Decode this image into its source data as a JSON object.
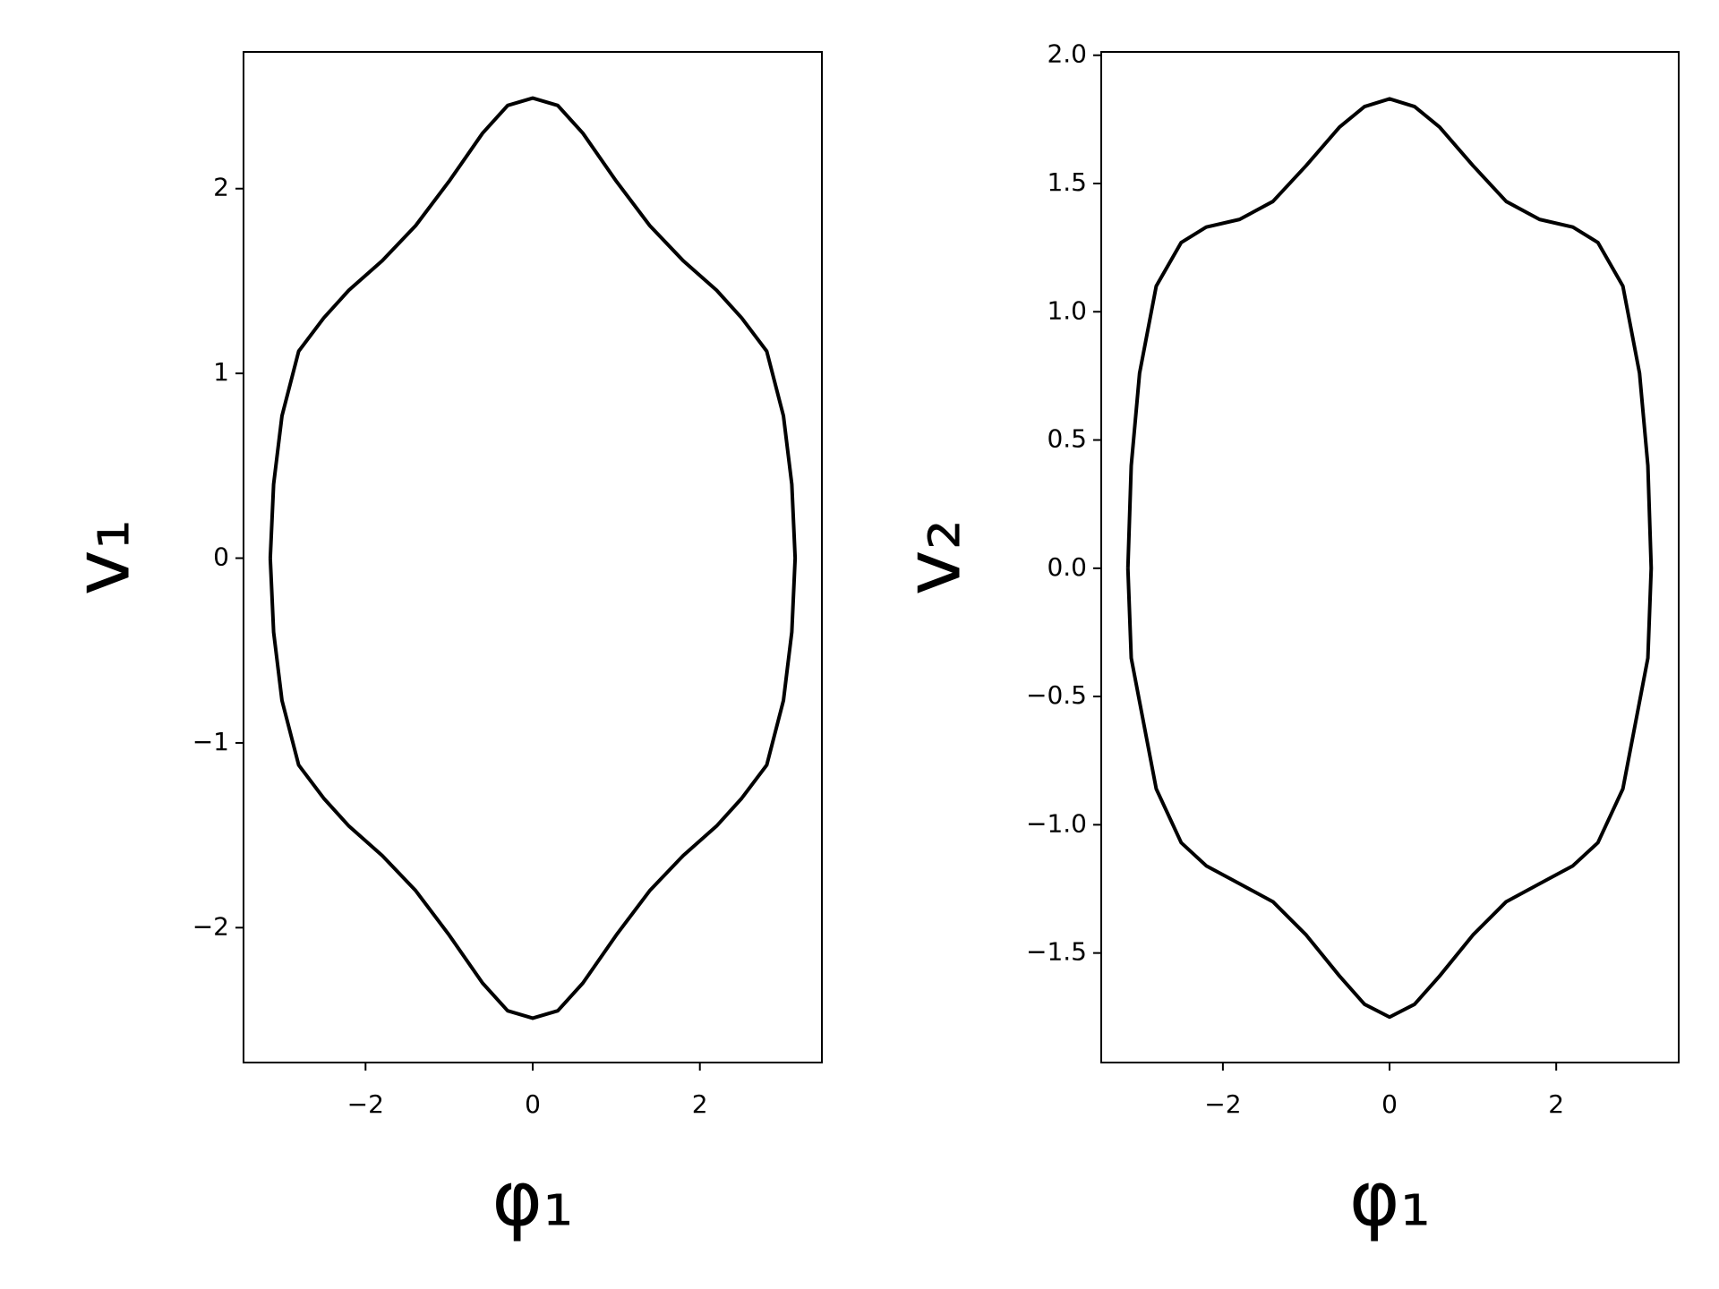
{
  "chart_data": [
    {
      "type": "line",
      "x_label": "φ₁",
      "y_label": "v₁",
      "x": [
        -3.14,
        -3.1,
        -3.0,
        -2.8,
        -2.5,
        -2.2,
        -1.8,
        -1.4,
        -1.0,
        -0.6,
        -0.3,
        0,
        0.3,
        0.6,
        1.0,
        1.4,
        1.8,
        2.2,
        2.5,
        2.8,
        3.0,
        3.1,
        3.14,
        3.1,
        3.0,
        2.8,
        2.5,
        2.2,
        1.8,
        1.4,
        1.0,
        0.6,
        0.3,
        0,
        -0.3,
        -0.6,
        -1.0,
        -1.4,
        -1.8,
        -2.2,
        -2.5,
        -2.8,
        -3.0,
        -3.1,
        -3.14
      ],
      "series": [
        {
          "color": "#000000",
          "values": [
            0,
            0.4,
            0.77,
            1.12,
            1.3,
            1.45,
            1.61,
            1.8,
            2.04,
            2.3,
            2.45,
            2.49,
            2.45,
            2.3,
            2.04,
            1.8,
            1.61,
            1.45,
            1.3,
            1.12,
            0.77,
            0.4,
            0,
            -0.4,
            -0.77,
            -1.12,
            -1.3,
            -1.45,
            -1.61,
            -1.8,
            -2.04,
            -2.3,
            -2.45,
            -2.49,
            -2.45,
            -2.3,
            -2.04,
            -1.8,
            -1.61,
            -1.45,
            -1.3,
            -1.12,
            -0.77,
            -0.4,
            0
          ]
        }
      ],
      "xlim": [
        -3.46,
        3.46
      ],
      "ylim": [
        -2.73,
        2.74
      ],
      "xticks": [
        {
          "value": -2,
          "label": "−2"
        },
        0,
        2
      ],
      "yticks": [
        {
          "value": -2,
          "label": "−2"
        },
        {
          "value": -1,
          "label": "−1"
        },
        0,
        1,
        2
      ]
    },
    {
      "type": "line",
      "x_label": "φ₁",
      "y_label": "v₂",
      "x": [
        -3.14,
        -3.1,
        -3.0,
        -2.8,
        -2.5,
        -2.2,
        -1.8,
        -1.4,
        -1.0,
        -0.6,
        -0.3,
        0,
        0.3,
        0.6,
        1.0,
        1.4,
        1.8,
        2.2,
        2.5,
        2.8,
        3.0,
        3.1,
        3.14,
        3.1,
        3.0,
        2.8,
        2.5,
        2.2,
        1.8,
        1.4,
        1.0,
        0.6,
        0.3,
        0,
        -0.3,
        -0.6,
        -1.0,
        -1.4,
        -1.8,
        -2.2,
        -2.5,
        -2.8,
        -3.0,
        -3.1,
        -3.14
      ],
      "series": [
        {
          "color": "#000000",
          "values": [
            0,
            0.4,
            0.76,
            1.1,
            1.27,
            1.33,
            1.36,
            1.43,
            1.57,
            1.72,
            1.8,
            1.83,
            1.8,
            1.72,
            1.57,
            1.43,
            1.36,
            1.33,
            1.27,
            1.1,
            0.76,
            0.4,
            0,
            -0.35,
            -0.52,
            -0.86,
            -1.07,
            -1.16,
            -1.23,
            -1.3,
            -1.43,
            -1.59,
            -1.7,
            -1.75,
            -1.7,
            -1.59,
            -1.43,
            -1.3,
            -1.23,
            -1.16,
            -1.07,
            -0.86,
            -0.52,
            -0.35,
            0
          ]
        }
      ],
      "xlim": [
        -3.46,
        3.47
      ],
      "ylim": [
        -1.927,
        2.013
      ],
      "xticks": [
        {
          "value": -2,
          "label": "−2"
        },
        0,
        2
      ],
      "yticks": [
        {
          "value": -1.5,
          "label": "−1.5"
        },
        {
          "value": -1,
          "label": "−1.0"
        },
        {
          "value": -0.5,
          "label": "−0.5"
        },
        {
          "value": 0,
          "label": "0.0"
        },
        0.5,
        {
          "value": 1,
          "label": "1.0"
        },
        1.5,
        {
          "value": 2,
          "label": "2.0"
        }
      ]
    }
  ]
}
